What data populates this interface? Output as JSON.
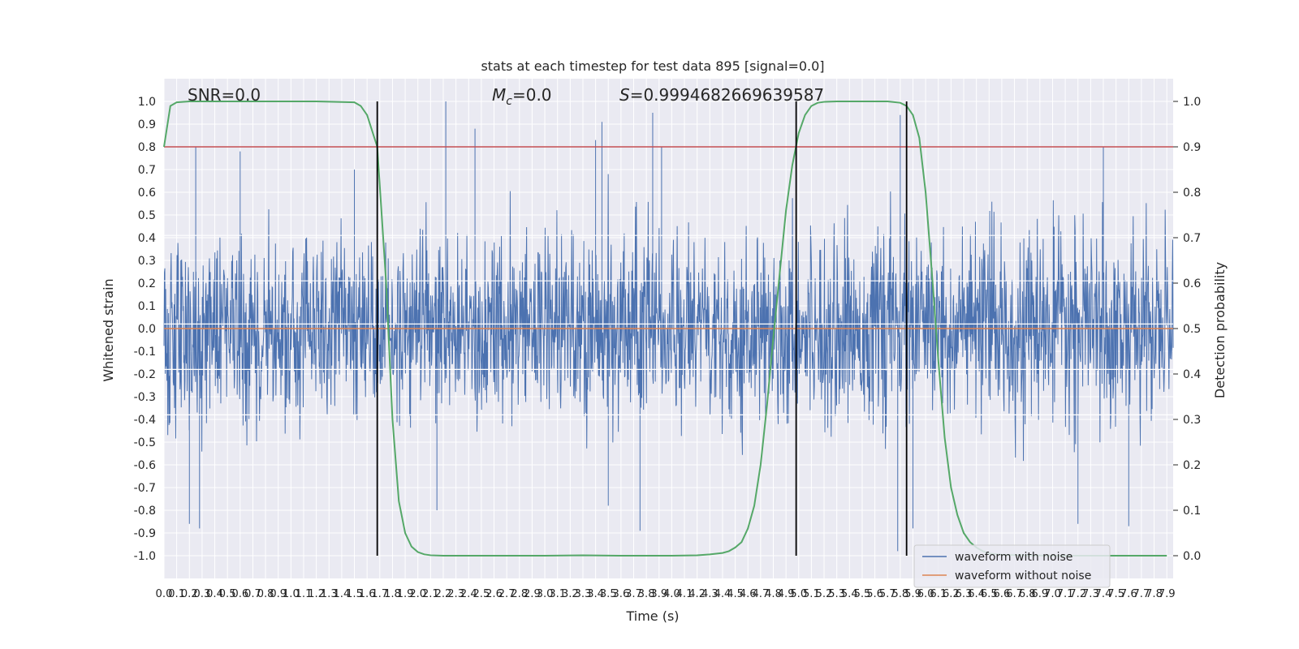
{
  "chart_data": {
    "type": "line",
    "title": "stats at each timestep for test data 895 [signal=0.0]",
    "xlabel": "Time (s)",
    "ylabel": "Whitened strain",
    "ylabel_right": "Detection probability",
    "xlim": [
      0.0,
      7.95
    ],
    "ylim": [
      -1.1,
      1.1
    ],
    "ylim_right": [
      -0.05,
      1.05
    ],
    "x_ticks": [
      "0.0",
      "0.1",
      "0.2",
      "0.3",
      "0.4",
      "0.5",
      "0.6",
      "0.7",
      "0.8",
      "0.9",
      "1.0",
      "1.1",
      "1.2",
      "1.3",
      "1.4",
      "1.5",
      "1.6",
      "1.7",
      "1.8",
      "1.9",
      "2.0",
      "2.1",
      "2.2",
      "2.3",
      "2.4",
      "2.5",
      "2.6",
      "2.7",
      "2.8",
      "2.9",
      "3.0",
      "3.1",
      "3.2",
      "3.3",
      "3.4",
      "3.5",
      "3.6",
      "3.7",
      "3.8",
      "3.9",
      "4.0",
      "4.1",
      "4.2",
      "4.3",
      "4.4",
      "4.5",
      "4.6",
      "4.7",
      "4.8",
      "4.9",
      "5.0",
      "5.1",
      "5.2",
      "5.3",
      "5.4",
      "5.5",
      "5.6",
      "5.7",
      "5.8",
      "5.9",
      "6.0",
      "6.1",
      "6.2",
      "6.3",
      "6.4",
      "6.5",
      "6.6",
      "6.7",
      "6.8",
      "6.9",
      "7.0",
      "7.1",
      "7.2",
      "7.3",
      "7.4",
      "7.5",
      "7.6",
      "7.7",
      "7.8",
      "7.9"
    ],
    "y_ticks_left": [
      "1.0",
      "0.9",
      "0.8",
      "0.7",
      "0.6",
      "0.5",
      "0.4",
      "0.3",
      "0.2",
      "0.1",
      "0.0",
      "-0.1",
      "-0.2",
      "-0.3",
      "-0.4",
      "-0.5",
      "-0.6",
      "-0.7",
      "-0.8",
      "-0.9",
      "-1.0"
    ],
    "y_ticks_right": [
      "1.0",
      "0.9",
      "0.8",
      "0.7",
      "0.6",
      "0.5",
      "0.4",
      "0.3",
      "0.2",
      "0.1",
      "0.0"
    ],
    "annotations": {
      "snr": "SNR=0.0",
      "mc_symbol": "M",
      "mc_sub": "c",
      "mc_value": "=0.0",
      "s_symbol": "S",
      "s_value": "=0.9994682669639587"
    },
    "threshold": 0.9,
    "vertical_lines_x": [
      1.68,
      4.98,
      5.85
    ],
    "series": [
      {
        "name": "waveform with noise",
        "color": "#4c72b0",
        "axis": "left",
        "envelope": "dense noise, roughly within ±0.6 with spikes",
        "peaks": [
          [
            0.25,
            0.8
          ],
          [
            0.6,
            0.78
          ],
          [
            1.5,
            0.7
          ],
          [
            2.22,
            1.0
          ],
          [
            2.45,
            0.88
          ],
          [
            3.4,
            0.83
          ],
          [
            3.45,
            0.91
          ],
          [
            3.85,
            0.95
          ],
          [
            3.92,
            0.8
          ],
          [
            5.8,
            0.94
          ],
          [
            7.4,
            0.8
          ]
        ],
        "troughs": [
          [
            0.2,
            -0.86
          ],
          [
            0.28,
            -0.88
          ],
          [
            2.15,
            -0.8
          ],
          [
            3.5,
            -0.78
          ],
          [
            3.75,
            -0.89
          ],
          [
            5.78,
            -0.98
          ],
          [
            5.9,
            -0.88
          ],
          [
            7.2,
            -0.86
          ],
          [
            7.6,
            -0.87
          ]
        ]
      },
      {
        "name": "waveform without noise",
        "color": "#dd8452",
        "axis": "left",
        "x": [
          0.0,
          7.95
        ],
        "values": [
          0.0,
          0.0
        ]
      },
      {
        "name": "",
        "color": "#55a868",
        "axis": "right",
        "x": [
          0.0,
          0.05,
          0.1,
          0.2,
          0.4,
          0.8,
          1.2,
          1.5,
          1.55,
          1.6,
          1.68,
          1.75,
          1.8,
          1.85,
          1.9,
          1.95,
          2.0,
          2.05,
          2.1,
          2.2,
          2.5,
          3.0,
          3.3,
          3.6,
          4.0,
          4.2,
          4.3,
          4.4,
          4.45,
          4.5,
          4.55,
          4.6,
          4.65,
          4.7,
          4.75,
          4.8,
          4.85,
          4.9,
          4.95,
          5.0,
          5.05,
          5.1,
          5.15,
          5.2,
          5.3,
          5.5,
          5.7,
          5.8,
          5.85,
          5.9,
          5.95,
          6.0,
          6.05,
          6.1,
          6.15,
          6.2,
          6.25,
          6.3,
          6.35,
          6.4,
          6.45,
          6.5,
          6.6,
          6.8,
          7.0,
          7.2,
          7.4,
          7.6,
          7.9
        ],
        "values": [
          0.9,
          0.99,
          0.998,
          1.0,
          1.0,
          1.0,
          1.0,
          0.998,
          0.99,
          0.97,
          0.9,
          0.6,
          0.3,
          0.12,
          0.05,
          0.02,
          0.008,
          0.003,
          0.001,
          0.0,
          0.0,
          0.0,
          0.001,
          0.0,
          0.0,
          0.001,
          0.003,
          0.006,
          0.01,
          0.018,
          0.03,
          0.06,
          0.11,
          0.2,
          0.33,
          0.48,
          0.62,
          0.76,
          0.86,
          0.93,
          0.97,
          0.99,
          0.997,
          0.999,
          1.0,
          1.0,
          1.0,
          0.997,
          0.99,
          0.97,
          0.92,
          0.8,
          0.62,
          0.43,
          0.26,
          0.15,
          0.09,
          0.05,
          0.03,
          0.018,
          0.01,
          0.005,
          0.002,
          0.001,
          0.0,
          0.0,
          0.0,
          0.0,
          0.0
        ]
      },
      {
        "name": "",
        "color": "#c44e52",
        "axis": "right",
        "x": [
          0.0,
          7.95
        ],
        "values": [
          0.9,
          0.9
        ]
      }
    ],
    "legend": {
      "position": "lower-right",
      "entries": [
        "waveform with noise",
        "waveform without noise"
      ]
    },
    "grid": true
  }
}
